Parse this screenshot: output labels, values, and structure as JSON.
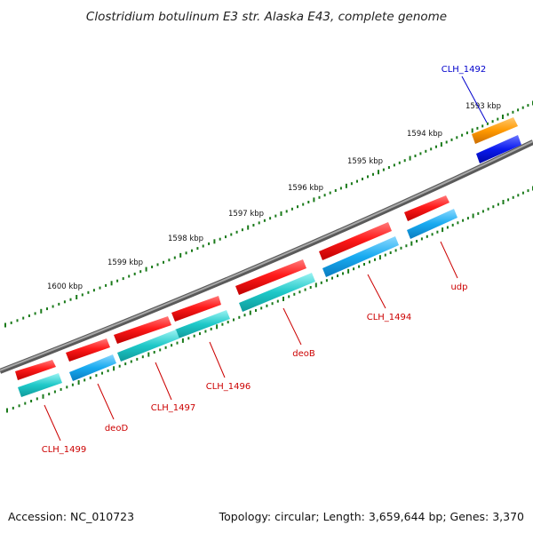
{
  "title": "Clostridium botulinum E3 str. Alaska E43, complete genome",
  "footer": {
    "accession": "Accession: NC_010723",
    "summary": "Topology: circular; Length: 3,659,644 bp; Genes: 3,370"
  },
  "ticks": [
    "1593 kbp",
    "1594 kbp",
    "1595 kbp",
    "1596 kbp",
    "1597 kbp",
    "1598 kbp",
    "1599 kbp",
    "1600 kbp"
  ],
  "genes": [
    {
      "label": "CLH_1492",
      "color": "#0000cc"
    },
    {
      "label": "udp",
      "color": "#cc0000"
    },
    {
      "label": "CLH_1494",
      "color": "#cc0000"
    },
    {
      "label": "deoB",
      "color": "#cc0000"
    },
    {
      "label": "CLH_1496",
      "color": "#cc0000"
    },
    {
      "label": "CLH_1497",
      "color": "#cc0000"
    },
    {
      "label": "deoD",
      "color": "#cc0000"
    },
    {
      "label": "CLH_1499",
      "color": "#cc0000"
    }
  ],
  "colors": {
    "backbone": "#808080",
    "tick_marks": "#1a7a1a",
    "feature_red": "#ff1a1a",
    "feature_cyan": "#1ec8c8",
    "feature_skyblue": "#18aaf0",
    "feature_orange": "#ff9900",
    "feature_blue": "#0a1aee"
  }
}
